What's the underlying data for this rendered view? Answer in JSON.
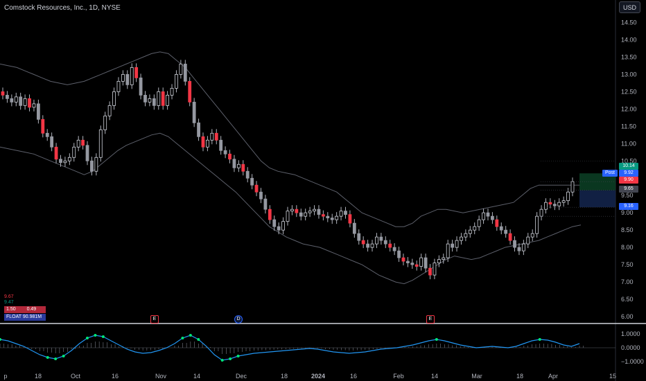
{
  "header": {
    "title": "Comstock Resources, Inc., 1D, NYSE",
    "currency": "USD"
  },
  "info": {
    "v1": "9.67",
    "v2": "9.47",
    "v3": "1.50",
    "v4": "0.49",
    "float_label": "FLOAT",
    "float_value": "90.981M"
  },
  "markers": [
    {
      "label": "E",
      "color": "#f23645"
    },
    {
      "label": "D",
      "color": "#2962ff"
    },
    {
      "label": "E",
      "color": "#f23645"
    }
  ],
  "price_labels": [
    {
      "text": "10.14",
      "color": "#089981"
    },
    {
      "text": "Post",
      "color": "#2962ff"
    },
    {
      "text": "9.92",
      "color": "#2962ff"
    },
    {
      "text": "9.90",
      "color": "#f23645"
    },
    {
      "text": "9.65",
      "color": "#434651"
    },
    {
      "text": "9.16",
      "color": "#2962ff"
    }
  ],
  "chart_data": {
    "type": "candlestick",
    "title": "Comstock Resources, Inc., 1D, NYSE",
    "y_ticks": [
      "14.50",
      "14.00",
      "13.50",
      "13.00",
      "12.50",
      "12.00",
      "11.50",
      "11.00",
      "10.50",
      "10.00",
      "9.50",
      "9.00",
      "8.50",
      "8.00",
      "7.50",
      "7.00",
      "6.50",
      "6.00"
    ],
    "ylim": [
      5.9,
      14.75
    ],
    "x_ticks": [
      "p",
      "18",
      "Oct",
      "16",
      "Nov",
      "14",
      "Dec",
      "18",
      "2024",
      "16",
      "Feb",
      "14",
      "Mar",
      "18",
      "Apr",
      "15"
    ],
    "closes": [
      12.4,
      12.3,
      12.2,
      12.35,
      12.1,
      12.3,
      12.05,
      12.15,
      11.7,
      11.3,
      11.2,
      10.9,
      10.55,
      10.45,
      10.5,
      10.6,
      10.9,
      11.1,
      10.95,
      10.5,
      10.2,
      10.6,
      11.4,
      11.8,
      12.1,
      12.5,
      12.8,
      13.0,
      12.7,
      13.2,
      12.9,
      12.4,
      12.2,
      12.3,
      12.1,
      12.5,
      12.1,
      12.4,
      12.6,
      13.0,
      13.3,
      12.8,
      12.2,
      11.6,
      11.2,
      10.9,
      11.1,
      11.3,
      11.1,
      10.8,
      10.7,
      10.55,
      10.3,
      10.4,
      10.2,
      10.0,
      9.8,
      9.6,
      9.4,
      9.1,
      8.8,
      8.6,
      8.5,
      8.75,
      9.05,
      9.1,
      9.0,
      8.9,
      9.0,
      9.05,
      9.1,
      8.95,
      8.9,
      8.85,
      8.8,
      8.9,
      9.05,
      8.95,
      8.7,
      8.4,
      8.2,
      8.1,
      8.0,
      8.1,
      8.3,
      8.2,
      8.1,
      8.0,
      7.9,
      7.7,
      7.6,
      7.55,
      7.5,
      7.45,
      7.7,
      7.4,
      7.2,
      7.55,
      7.65,
      7.7,
      8.1,
      8.0,
      8.2,
      8.3,
      8.4,
      8.5,
      8.6,
      8.8,
      9.0,
      8.9,
      8.8,
      8.6,
      8.5,
      8.4,
      8.2,
      8.0,
      7.9,
      8.1,
      8.3,
      8.4,
      8.9,
      9.1,
      9.3,
      9.25,
      9.2,
      9.3,
      9.35,
      9.6,
      9.9
    ],
    "ma_line": [
      11.8,
      11.75,
      11.7,
      11.65,
      11.55,
      11.45,
      11.4,
      11.35,
      11.3,
      11.3,
      11.3,
      11.35,
      11.4,
      11.5,
      11.6,
      11.7,
      11.8,
      11.9,
      12.0,
      12.1,
      12.2,
      12.3,
      12.4,
      12.45,
      12.45,
      12.35,
      12.2,
      12.0,
      11.8,
      11.6,
      11.4,
      11.2,
      11.0,
      10.8,
      10.6,
      10.4,
      10.2,
      10.0,
      9.8,
      9.6,
      9.4,
      9.2,
      9.05,
      8.9,
      8.8,
      8.7,
      8.6,
      8.5,
      8.4,
      8.3,
      8.2,
      8.1,
      8.0,
      7.9,
      7.8,
      7.8,
      7.9,
      8.1,
      8.3,
      8.45,
      8.5,
      8.45,
      8.4,
      8.35,
      8.4,
      8.6,
      8.8,
      8.95,
      9.1,
      9.3
    ],
    "upper_band": [
      13.3,
      13.25,
      13.2,
      13.1,
      13.0,
      12.9,
      12.8,
      12.75,
      12.7,
      12.75,
      12.8,
      12.9,
      13.0,
      13.1,
      13.2,
      13.3,
      13.4,
      13.5,
      13.6,
      13.65,
      13.6,
      13.4,
      13.2,
      12.9,
      12.6,
      12.3,
      12.0,
      11.7,
      11.4,
      11.1,
      10.8,
      10.5,
      10.3,
      10.2,
      10.15,
      10.1,
      10.0,
      9.9,
      9.8,
      9.7,
      9.6,
      9.4,
      9.2,
      9.0,
      8.9,
      8.8,
      8.7,
      8.6,
      8.6,
      8.7,
      8.9,
      9.0,
      9.1,
      9.1,
      9.05,
      9.0,
      9.05,
      9.1,
      9.15,
      9.2,
      9.25,
      9.3,
      9.5,
      9.7,
      9.8,
      9.8,
      9.8,
      9.8,
      9.8,
      9.8
    ],
    "lower_band": [
      10.9,
      10.85,
      10.8,
      10.75,
      10.7,
      10.6,
      10.5,
      10.4,
      10.3,
      10.2,
      10.1,
      10.2,
      10.4,
      10.6,
      10.8,
      10.95,
      11.05,
      11.15,
      11.25,
      11.3,
      11.2,
      11.0,
      10.8,
      10.6,
      10.4,
      10.2,
      10.0,
      9.8,
      9.6,
      9.35,
      9.1,
      8.85,
      8.6,
      8.45,
      8.3,
      8.2,
      8.1,
      8.05,
      8.0,
      7.9,
      7.8,
      7.7,
      7.6,
      7.5,
      7.35,
      7.2,
      7.1,
      7.0,
      6.95,
      7.05,
      7.2,
      7.35,
      7.5,
      7.65,
      7.75,
      7.7,
      7.65,
      7.7,
      7.8,
      7.9,
      8.0,
      8.05,
      8.1,
      8.15,
      8.2,
      8.3,
      8.4,
      8.5,
      8.6,
      8.65
    ],
    "oscillator": {
      "ticks": [
        "1.0000",
        "0.0000",
        "−1.0000"
      ],
      "ylim": [
        -1.4,
        1.4
      ],
      "values": [
        0.6,
        0.5,
        0.3,
        0.1,
        -0.2,
        -0.5,
        -0.7,
        -0.8,
        -0.6,
        -0.2,
        0.3,
        0.7,
        0.9,
        0.8,
        0.5,
        0.2,
        -0.1,
        -0.3,
        -0.4,
        -0.35,
        -0.2,
        0.0,
        0.3,
        0.7,
        0.9,
        0.6,
        0.1,
        -0.5,
        -0.9,
        -0.8,
        -0.6,
        -0.5,
        -0.4,
        -0.35,
        -0.3,
        -0.25,
        -0.2,
        -0.15,
        -0.1,
        -0.05,
        -0.1,
        -0.2,
        -0.3,
        -0.35,
        -0.4,
        -0.35,
        -0.3,
        -0.2,
        -0.1,
        -0.05,
        0.0,
        0.1,
        0.2,
        0.35,
        0.5,
        0.6,
        0.5,
        0.35,
        0.2,
        0.1,
        0.0,
        0.05,
        0.1,
        0.05,
        0.0,
        0.1,
        0.3,
        0.5,
        0.6,
        0.55,
        0.4,
        0.2,
        0.1,
        0.3
      ]
    }
  }
}
